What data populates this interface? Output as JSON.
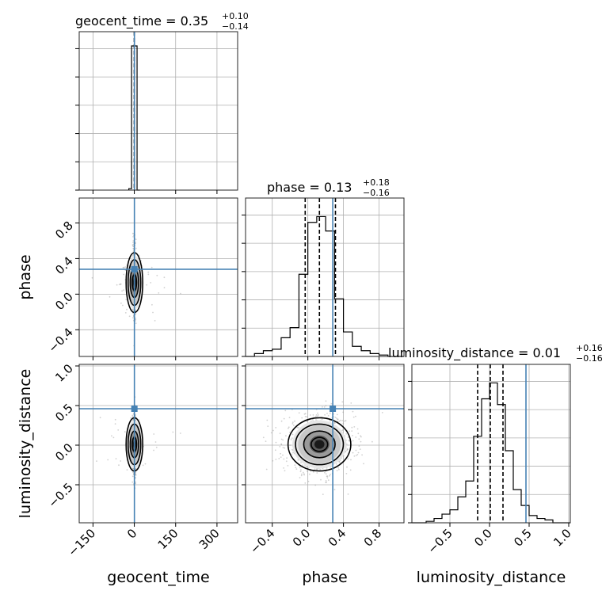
{
  "chart_data": {
    "type": "corner",
    "parameters": [
      {
        "name": "geocent_time",
        "range": [
          -200,
          375
        ],
        "ticks": [
          -150,
          0,
          150,
          300
        ],
        "tick_labels": [
          "−150",
          "0",
          "150",
          "300"
        ],
        "title_prefix": "geocent_time = 0.35",
        "title_upper": "+0.10",
        "title_lower": "−0.14",
        "median": 0.35,
        "quantiles": [
          0.21,
          0.35,
          0.45
        ],
        "truth": 0.3,
        "hist_bins": [
          -20,
          -10,
          0,
          10,
          20
        ],
        "hist_counts": [
          0.01,
          1.0,
          1.0,
          0.0
        ]
      },
      {
        "name": "phase",
        "range": [
          -0.7,
          1.08
        ],
        "ticks": [
          -0.4,
          0.0,
          0.4,
          0.8
        ],
        "tick_labels": [
          "−0.4",
          "0.0",
          "0.4",
          "0.8"
        ],
        "title_prefix": "phase = 0.13",
        "title_upper": "+0.18",
        "title_lower": "−0.16",
        "median": 0.13,
        "quantiles": [
          -0.03,
          0.13,
          0.31
        ],
        "truth": 0.28,
        "hist_bins": [
          -0.7,
          -0.6,
          -0.5,
          -0.4,
          -0.3,
          -0.2,
          -0.1,
          0.0,
          0.1,
          0.2,
          0.3,
          0.4,
          0.5,
          0.6,
          0.7,
          0.8,
          0.9,
          1.0,
          1.08
        ],
        "hist_counts": [
          0.0,
          0.02,
          0.04,
          0.05,
          0.13,
          0.2,
          0.57,
          0.93,
          0.97,
          0.87,
          0.4,
          0.17,
          0.07,
          0.04,
          0.02,
          0.01,
          0.0,
          0.0
        ]
      },
      {
        "name": "luminosity_distance",
        "range": [
          -0.98,
          1.02
        ],
        "ticks": [
          -0.5,
          0.0,
          0.5,
          1.0
        ],
        "tick_labels": [
          "−0.5",
          "0.0",
          "0.5",
          "1.0"
        ],
        "title_prefix": "luminosity_distance = 0.01",
        "title_upper": "+0.16",
        "title_lower": "−0.16",
        "median": 0.01,
        "quantiles": [
          -0.15,
          0.01,
          0.17
        ],
        "truth": 0.46,
        "hist_bins": [
          -0.98,
          -0.8,
          -0.7,
          -0.6,
          -0.5,
          -0.4,
          -0.3,
          -0.2,
          -0.1,
          0.0,
          0.1,
          0.2,
          0.3,
          0.4,
          0.5,
          0.6,
          0.7,
          0.8,
          0.9,
          1.02
        ],
        "hist_counts": [
          0.0,
          0.01,
          0.03,
          0.06,
          0.09,
          0.18,
          0.29,
          0.6,
          0.86,
          0.97,
          0.82,
          0.5,
          0.23,
          0.12,
          0.05,
          0.03,
          0.02,
          0.0,
          0.0
        ]
      }
    ],
    "grid": true,
    "truth_color": "#4682b4",
    "quantile_style": "dashed",
    "contour_color": "#000000"
  }
}
